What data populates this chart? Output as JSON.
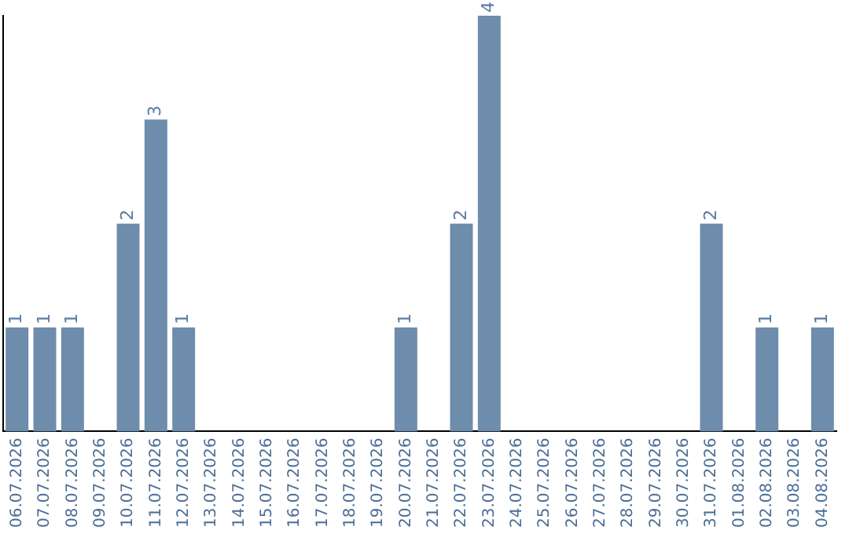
{
  "chart_data": {
    "type": "bar",
    "categories": [
      "06.07.2026",
      "07.07.2026",
      "08.07.2026",
      "09.07.2026",
      "10.07.2026",
      "11.07.2026",
      "12.07.2026",
      "13.07.2026",
      "14.07.2026",
      "15.07.2026",
      "16.07.2026",
      "17.07.2026",
      "18.07.2026",
      "19.07.2026",
      "20.07.2026",
      "21.07.2026",
      "22.07.2026",
      "23.07.2026",
      "24.07.2026",
      "25.07.2026",
      "26.07.2026",
      "27.07.2026",
      "28.07.2026",
      "29.07.2026",
      "30.07.2026",
      "31.07.2026",
      "01.08.2026",
      "02.08.2026",
      "03.08.2026",
      "04.08.2026"
    ],
    "values": [
      1,
      1,
      1,
      0,
      2,
      3,
      1,
      0,
      0,
      0,
      0,
      0,
      0,
      0,
      1,
      0,
      2,
      4,
      0,
      0,
      0,
      0,
      0,
      0,
      0,
      2,
      0,
      1,
      0,
      1
    ],
    "value_labels": [
      "1",
      "1",
      "1",
      null,
      "2",
      "3",
      "1",
      null,
      null,
      null,
      null,
      null,
      null,
      null,
      "1",
      null,
      "2",
      "4",
      null,
      null,
      null,
      null,
      null,
      null,
      null,
      "2",
      null,
      "1",
      null,
      "1"
    ],
    "color": "#6e8cab",
    "tick_labels": "x",
    "grid": false,
    "legend": false
  }
}
